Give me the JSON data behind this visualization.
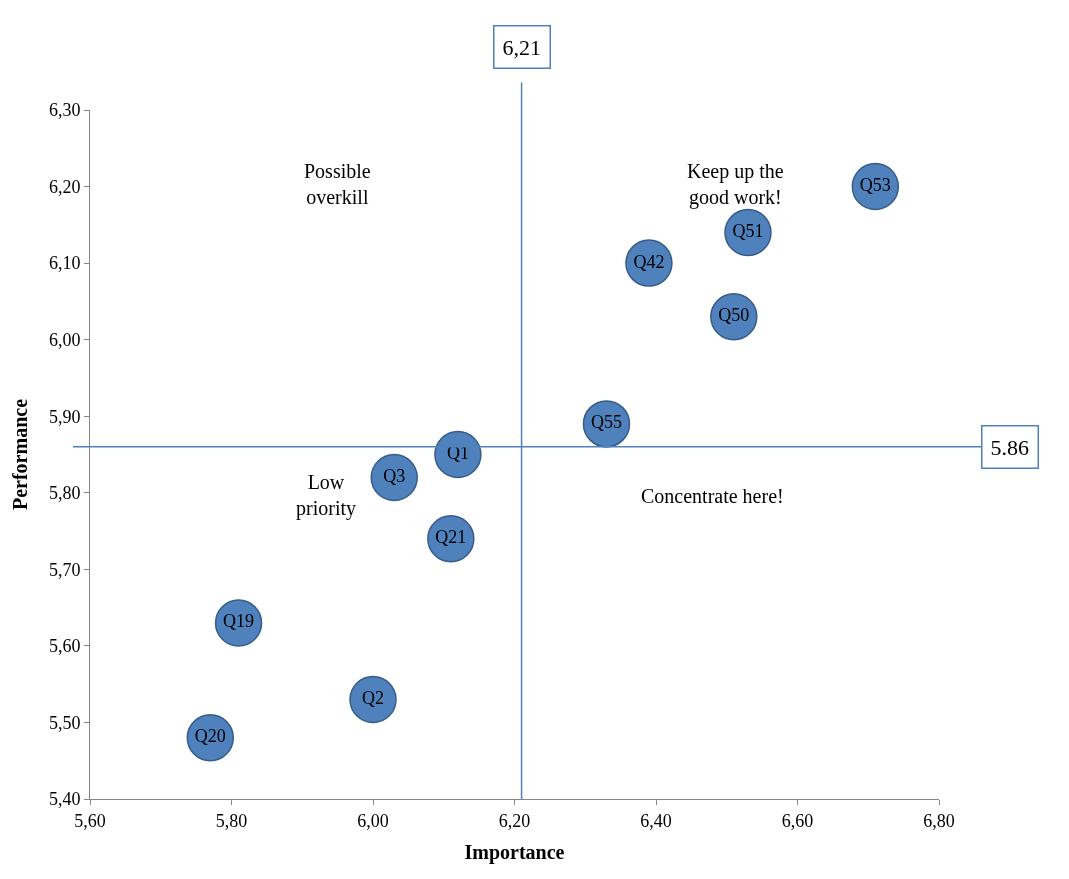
{
  "chart_data": {
    "type": "scatter",
    "xlabel": "Importance",
    "ylabel": "Performance",
    "x": [
      6.71,
      6.53,
      6.39,
      6.51,
      6.33,
      6.12,
      6.03,
      6.11,
      5.81,
      6.0,
      5.77
    ],
    "values": [
      6.2,
      6.14,
      6.1,
      6.03,
      5.89,
      5.85,
      5.82,
      5.74,
      5.63,
      5.53,
      5.48
    ],
    "value_labels": [
      "Q53",
      "Q51",
      "Q42",
      "Q50",
      "Q55",
      "Q1",
      "Q3",
      "Q21",
      "Q19",
      "Q2",
      "Q20"
    ],
    "color": "#4f81bd",
    "marker": "circle",
    "xlim": [
      5.6,
      6.8
    ],
    "xticks": [
      {
        "value": 5.6,
        "label": "5,60"
      },
      {
        "value": 5.8,
        "label": "5,80"
      },
      {
        "value": 6.0,
        "label": "6,00"
      },
      {
        "value": 6.2,
        "label": "6,20"
      },
      {
        "value": 6.4,
        "label": "6,40"
      },
      {
        "value": 6.6,
        "label": "6,60"
      },
      {
        "value": 6.8,
        "label": "6,80"
      }
    ],
    "ylim": [
      5.4,
      6.3
    ],
    "yticks": [
      {
        "value": 5.4,
        "label": "5,40"
      },
      {
        "value": 5.5,
        "label": "5,50"
      },
      {
        "value": 5.6,
        "label": "5,60"
      },
      {
        "value": 5.7,
        "label": "5,70"
      },
      {
        "value": 5.8,
        "label": "5,80"
      },
      {
        "value": 5.9,
        "label": "5,90"
      },
      {
        "value": 6.0,
        "label": "6,00"
      },
      {
        "value": 6.1,
        "label": "6,10"
      },
      {
        "value": 6.2,
        "label": "6,20"
      },
      {
        "value": 6.3,
        "label": "6,30"
      }
    ],
    "ref_lines": [
      {
        "axis": "x",
        "value": 6.21,
        "label": "6,21",
        "color": "#4f81bd"
      },
      {
        "axis": "y",
        "value": 5.86,
        "label": "5.86",
        "color": "#4f81bd"
      }
    ],
    "annotations": [
      "Possible\noverkill",
      "Keep up the\ngood work!",
      "Low\npriority",
      "Concentrate here!"
    ],
    "legend": false
  }
}
